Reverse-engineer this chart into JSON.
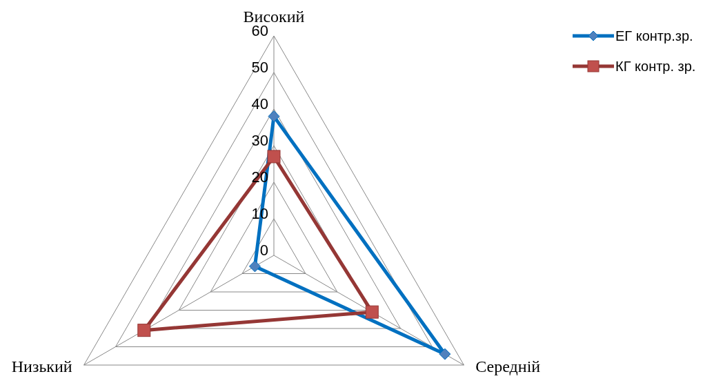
{
  "chart_data": {
    "type": "radar",
    "categories": [
      "Високий",
      "Середній",
      "Низький"
    ],
    "series": [
      {
        "name": "ЕГ контр.зр.",
        "color": "#0070c0",
        "marker": "diamond",
        "values": [
          38,
          54,
          6
        ]
      },
      {
        "name": "КГ контр. зр.",
        "color": "#953735",
        "marker": "square",
        "values": [
          27,
          31,
          41
        ]
      }
    ],
    "ylim": [
      0,
      60
    ],
    "yticks": [
      0,
      10,
      20,
      30,
      40,
      50,
      60
    ],
    "grid": true,
    "legend": "top right"
  }
}
